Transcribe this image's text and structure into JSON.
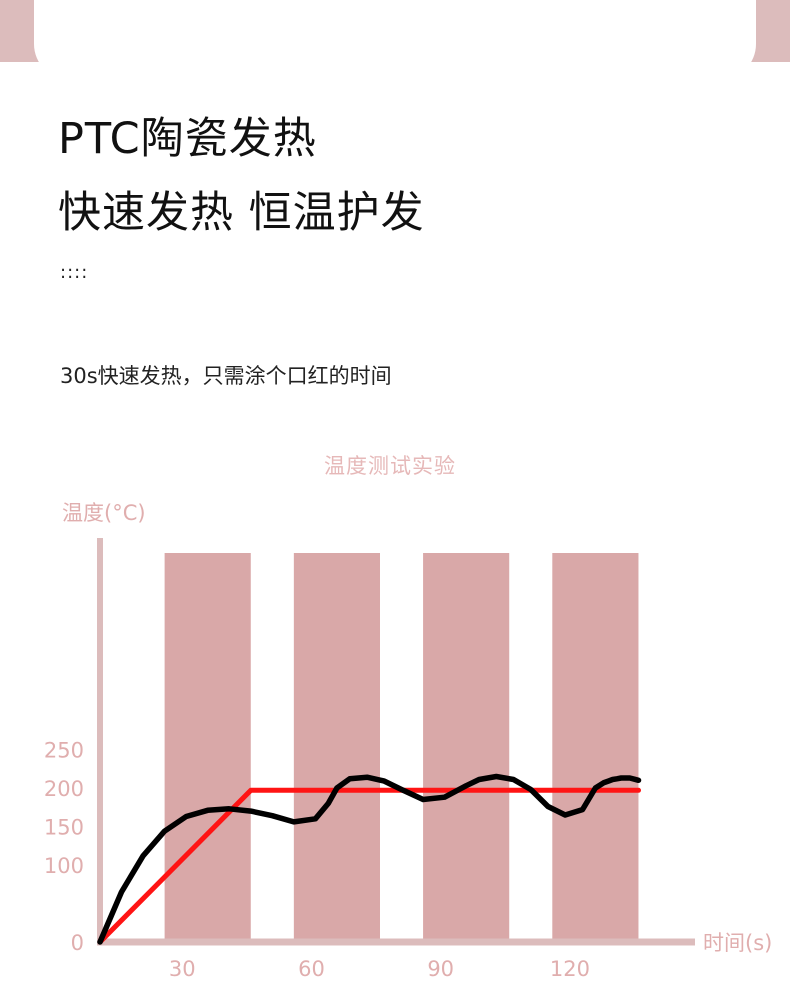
{
  "header": {
    "title_line1": "PTC陶瓷发热",
    "title_line2": "快速发热 恒温护发",
    "dots": "::::",
    "subtitle": "30s快速发热，只需涂个口红的时间"
  },
  "colors": {
    "decor": "#dcbcbc",
    "bar": "#d9a8a8",
    "axis": "#dcbcbc",
    "label": "#e0aeae",
    "target_line": "#ff1414",
    "measured_line": "#000000"
  },
  "chart_data": {
    "type": "line",
    "title": "温度测试实验",
    "ylabel": "温度(°C)",
    "xlabel": "时间(s)",
    "xlim": [
      0,
      130
    ],
    "ylim": [
      0,
      300
    ],
    "xticks": [
      30,
      60,
      90,
      120
    ],
    "yticks": [
      0,
      100,
      150,
      200,
      250
    ],
    "background_bars": [
      {
        "from": 15,
        "to": 35
      },
      {
        "from": 45,
        "to": 65
      },
      {
        "from": 75,
        "to": 95
      },
      {
        "from": 105,
        "to": 125
      }
    ],
    "series": [
      {
        "color": "#ff1414",
        "x": [
          0,
          35,
          125
        ],
        "y": [
          0,
          197,
          197
        ]
      },
      {
        "color": "#000000",
        "x": [
          0,
          5,
          10,
          15,
          20,
          25,
          30,
          35,
          40,
          45,
          50,
          53,
          55,
          58,
          62,
          66,
          70,
          75,
          80,
          85,
          88,
          92,
          96,
          100,
          104,
          108,
          112,
          115,
          117,
          118,
          119,
          120,
          121,
          123,
          125
        ],
        "y": [
          0,
          65,
          112,
          144,
          163,
          171,
          173,
          170,
          164,
          156,
          160,
          180,
          200,
          212,
          214,
          209,
          198,
          185,
          188,
          203,
          211,
          215,
          211,
          198,
          176,
          165,
          172,
          200,
          207,
          209,
          211,
          212,
          213,
          213,
          210
        ]
      }
    ]
  }
}
